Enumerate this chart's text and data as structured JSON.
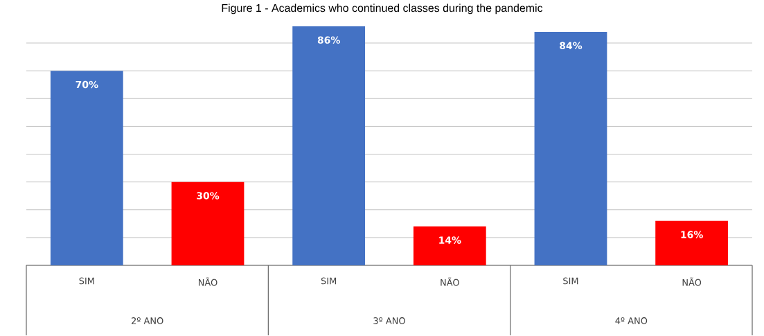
{
  "chart_data": {
    "type": "bar",
    "title": "Figure 1 - Academics who continued classes during the pandemic",
    "categories": [
      "SIM",
      "NÃO",
      "SIM",
      "NÃO",
      "SIM",
      "NÃO"
    ],
    "values": [
      70,
      30,
      86,
      14,
      84,
      16
    ],
    "colors": [
      "#4472c4",
      "#ff0000",
      "#4472c4",
      "#ff0000",
      "#4472c4",
      "#ff0000"
    ],
    "value_labels": [
      "70%",
      "30%",
      "86%",
      "14%",
      "84%",
      "16%"
    ],
    "annotations": [
      "2º ANO",
      "3º ANO",
      "4º ANO"
    ],
    "grid": "y"
  }
}
